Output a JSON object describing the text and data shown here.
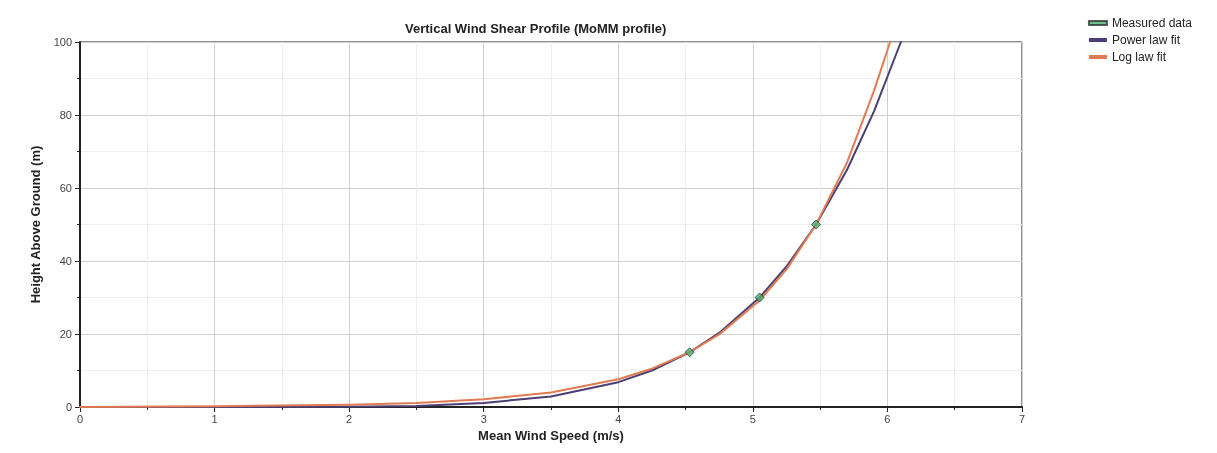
{
  "chart_data": {
    "type": "line",
    "title": "Vertical Wind Shear Profile (MoMM profile)",
    "xlabel": "Mean Wind Speed (m/s)",
    "ylabel": "Height Above Ground (m)",
    "xlim": [
      0,
      7
    ],
    "xticks": [
      0,
      1,
      2,
      3,
      4,
      5,
      6,
      7
    ],
    "ylim": [
      0,
      100
    ],
    "yticks": [
      0,
      20,
      40,
      60,
      80,
      100
    ],
    "grid": true,
    "legend": "top right",
    "line_style": "solid",
    "series": [
      {
        "name": "Measured data",
        "type": "scatter",
        "marker": "diamond",
        "color": "#4caf6e",
        "x": [
          4.53,
          5.05,
          5.47
        ],
        "values": [
          15,
          30,
          50
        ]
      },
      {
        "name": "Power law fit",
        "color": "#4b3f72",
        "x": [
          0,
          1,
          2,
          2.5,
          3,
          3.5,
          4,
          4.25,
          4.53,
          4.75,
          5.05,
          5.25,
          5.47,
          5.7,
          5.9,
          6.1
        ],
        "values": [
          0,
          0,
          0.1,
          0.3,
          1.1,
          2.9,
          6.8,
          10,
          15,
          20.3,
          30,
          38.5,
          50,
          65,
          81,
          100
        ]
      },
      {
        "name": "Log law fit",
        "color": "#e07b53",
        "x": [
          0,
          1,
          2,
          2.5,
          3,
          3.5,
          4,
          4.25,
          4.53,
          4.75,
          5.05,
          5.25,
          5.47,
          5.7,
          5.9,
          6.02
        ],
        "values": [
          0,
          0.2,
          0.6,
          1.1,
          2.1,
          4,
          7.6,
          10.5,
          15,
          19.9,
          29.2,
          37.7,
          50,
          67,
          86.6,
          100
        ]
      }
    ]
  }
}
